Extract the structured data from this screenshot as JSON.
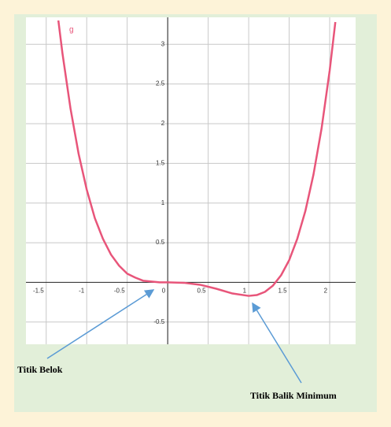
{
  "chart_data": {
    "type": "line",
    "series": [
      {
        "name": "g",
        "color": "#e8557a",
        "x": [
          -1.35,
          -1.3,
          -1.2,
          -1.1,
          -1.0,
          -0.9,
          -0.8,
          -0.7,
          -0.6,
          -0.5,
          -0.4,
          -0.3,
          -0.2,
          -0.1,
          0,
          0.2,
          0.4,
          0.6,
          0.8,
          1.0,
          1.1,
          1.2,
          1.3,
          1.4,
          1.5,
          1.6,
          1.7,
          1.8,
          1.9,
          2.0,
          2.07
        ],
        "values": [
          3.3,
          2.89,
          2.19,
          1.62,
          1.17,
          0.81,
          0.55,
          0.35,
          0.21,
          0.11,
          0.06,
          0.02,
          0.01,
          0,
          0,
          -0.005,
          -0.03,
          -0.08,
          -0.14,
          -0.17,
          -0.16,
          -0.12,
          -0.04,
          0.09,
          0.28,
          0.55,
          0.9,
          1.36,
          1.94,
          2.67,
          3.28
        ]
      }
    ],
    "xlim": [
      -1.75,
      2.32
    ],
    "ylim": [
      -0.78,
      3.34
    ],
    "xticks": [
      -1.5,
      -1,
      -0.5,
      0,
      0.5,
      1,
      1.5,
      2
    ],
    "yticks": [
      -0.5,
      0.5,
      1,
      1.5,
      2,
      2.5,
      3
    ],
    "grid": true,
    "annotations": [
      "Titik Belok",
      "Titik Balik Minimum"
    ]
  }
}
